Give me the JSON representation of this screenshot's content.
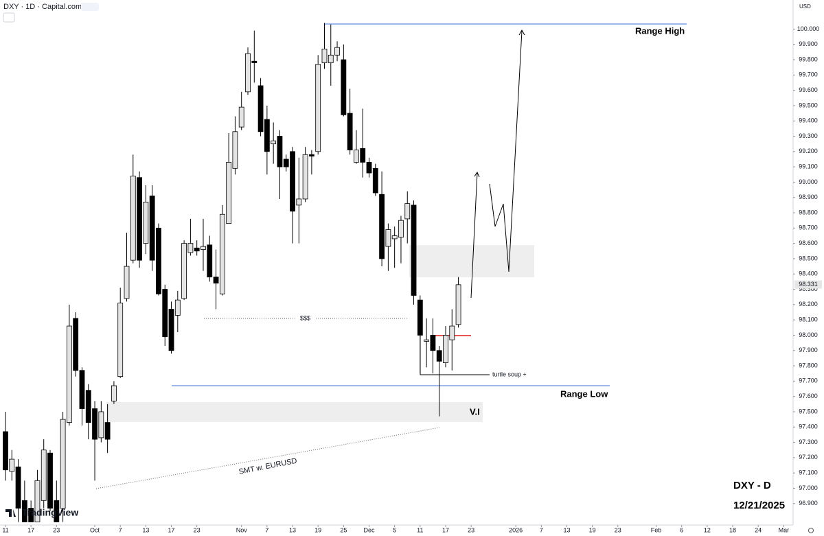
{
  "header": {
    "symbol": "DXY · 1D · Capital.com",
    "currency": "USD",
    "brand": "TradingView"
  },
  "chart_data": {
    "type": "candlestick",
    "open": [
      97.37,
      97.11,
      97.14,
      96.92,
      96.87,
      96.78,
      96.92,
      97.23,
      96.92,
      96.87,
      97.43,
      98.11,
      97.77,
      97.64,
      97.52,
      97.33,
      97.43,
      97.57,
      97.73,
      98.24,
      98.49,
      99.03,
      98.6,
      98.91,
      98.7,
      98.3,
      98.17,
      98.13,
      98.24,
      98.54,
      98.57,
      98.56,
      98.59,
      98.38,
      98.27,
      98.73,
      99.09,
      99.36,
      99.59,
      99.79,
      99.63,
      99.41,
      99.25,
      99.3,
      99.15,
      99.2,
      98.85,
      98.89,
      99.18,
      99.2,
      99.78,
      99.78,
      99.83,
      99.8,
      99.45,
      99.13,
      99.22,
      99.13,
      99.09,
      98.92,
      98.58,
      98.63,
      98.64,
      98.76,
      98.85,
      98.23,
      97.96,
      98.0,
      97.9,
      97.82,
      97.97,
      98.07
    ],
    "high": [
      97.5,
      97.25,
      97.19,
      97.05,
      96.92,
      97.12,
      97.32,
      97.25,
      97.05,
      97.5,
      98.2,
      98.15,
      97.79,
      97.68,
      97.57,
      97.57,
      97.55,
      97.7,
      98.31,
      98.67,
      99.18,
      99.07,
      98.98,
      98.98,
      98.73,
      98.33,
      98.22,
      98.29,
      98.62,
      98.76,
      98.62,
      98.76,
      98.65,
      98.56,
      98.85,
      99.32,
      99.43,
      99.59,
      99.88,
      99.99,
      99.68,
      99.5,
      99.39,
      99.34,
      99.18,
      99.23,
      99.16,
      99.23,
      99.21,
      99.83,
      100.04,
      100.03,
      99.92,
      99.9,
      99.61,
      99.34,
      99.48,
      99.16,
      99.12,
      99.07,
      98.73,
      98.71,
      98.78,
      98.94,
      98.88,
      98.26,
      98.11,
      98.11,
      97.93,
      98.06,
      98.17,
      98.38
    ],
    "low": [
      97.05,
      97.05,
      96.78,
      96.78,
      96.78,
      96.78,
      96.87,
      96.85,
      96.78,
      96.78,
      97.41,
      97.73,
      97.41,
      97.32,
      97.05,
      97.3,
      97.23,
      97.55,
      97.72,
      98.22,
      98.47,
      98.44,
      98.53,
      98.42,
      98.26,
      97.93,
      97.88,
      98.02,
      98.23,
      98.52,
      98.52,
      98.42,
      98.35,
      98.17,
      98.26,
      98.73,
      99.05,
      99.34,
      99.57,
      99.65,
      99.3,
      99.05,
      99.12,
      98.89,
      99.07,
      98.6,
      98.6,
      98.87,
      99.05,
      99.18,
      99.74,
      99.63,
      99.79,
      99.43,
      99.18,
      99.12,
      99.03,
      99.03,
      98.91,
      98.45,
      98.42,
      98.44,
      98.47,
      98.6,
      98.2,
      97.75,
      97.79,
      97.75,
      97.47,
      97.79,
      97.77,
      98.05
    ],
    "close": [
      97.12,
      97.19,
      96.87,
      96.78,
      96.78,
      97.05,
      97.25,
      96.87,
      96.78,
      97.45,
      98.06,
      97.77,
      97.52,
      97.43,
      97.32,
      97.5,
      97.32,
      97.67,
      98.21,
      98.45,
      99.04,
      98.49,
      98.87,
      98.49,
      98.27,
      97.99,
      97.9,
      98.23,
      98.6,
      98.6,
      98.55,
      98.58,
      98.38,
      98.34,
      98.79,
      99.13,
      99.33,
      99.49,
      99.84,
      99.78,
      99.33,
      99.2,
      99.27,
      99.1,
      99.1,
      98.81,
      98.89,
      99.18,
      99.17,
      99.77,
      99.87,
      99.83,
      99.88,
      99.44,
      99.21,
      99.21,
      99.13,
      99.06,
      98.93,
      98.5,
      98.69,
      98.65,
      98.75,
      98.86,
      98.26,
      98.0,
      97.97,
      97.9,
      97.83,
      98.0,
      98.06,
      98.33
    ],
    "up_color": "#e3e3e3",
    "down_color": "#000000",
    "last_price": 98.331,
    "ylim": [
      96.76,
      100.19
    ],
    "yticks": [
      {
        "value": 96.9,
        "label": "96.900"
      },
      {
        "value": 97.0,
        "label": "97.000"
      },
      {
        "value": 97.1,
        "label": "97.100"
      },
      {
        "value": 97.2,
        "label": "97.200"
      },
      {
        "value": 97.3,
        "label": "97.300"
      },
      {
        "value": 97.4,
        "label": "97.400"
      },
      {
        "value": 97.5,
        "label": "97.500"
      },
      {
        "value": 97.6,
        "label": "97.600"
      },
      {
        "value": 97.7,
        "label": "97.700"
      },
      {
        "value": 97.8,
        "label": "97.800"
      },
      {
        "value": 97.9,
        "label": "97.900"
      },
      {
        "value": 98.0,
        "label": "98.000"
      },
      {
        "value": 98.1,
        "label": "98.100"
      },
      {
        "value": 98.2,
        "label": "98.200"
      },
      {
        "value": 98.3,
        "label": "98.300"
      },
      {
        "value": 98.4,
        "label": "98.400"
      },
      {
        "value": 98.5,
        "label": "98.500"
      },
      {
        "value": 98.6,
        "label": "98.600"
      },
      {
        "value": 98.7,
        "label": "98.700"
      },
      {
        "value": 98.8,
        "label": "98.800"
      },
      {
        "value": 98.9,
        "label": "98.900"
      },
      {
        "value": 99.0,
        "label": "99.000"
      },
      {
        "value": 99.1,
        "label": "99.100"
      },
      {
        "value": 99.2,
        "label": "99.200"
      },
      {
        "value": 99.3,
        "label": "99.300"
      },
      {
        "value": 99.4,
        "label": "99.400"
      },
      {
        "value": 99.5,
        "label": "99.500"
      },
      {
        "value": 99.6,
        "label": "99.600"
      },
      {
        "value": 99.7,
        "label": "99.700"
      },
      {
        "value": 99.8,
        "label": "99.800"
      },
      {
        "value": 99.9,
        "label": "99.900"
      },
      {
        "value": 100.0,
        "label": "100.000"
      }
    ],
    "xlim": [
      -0.86,
      123.47
    ],
    "xticks": [
      {
        "value": 0,
        "label": "11"
      },
      {
        "value": 4,
        "label": "17"
      },
      {
        "value": 8,
        "label": "23"
      },
      {
        "value": 14,
        "label": "Oct"
      },
      {
        "value": 18,
        "label": "7"
      },
      {
        "value": 22,
        "label": "13"
      },
      {
        "value": 26,
        "label": "17"
      },
      {
        "value": 30,
        "label": "23"
      },
      {
        "value": 37,
        "label": "Nov"
      },
      {
        "value": 41,
        "label": "7"
      },
      {
        "value": 45,
        "label": "13"
      },
      {
        "value": 49,
        "label": "19"
      },
      {
        "value": 53,
        "label": "25"
      },
      {
        "value": 57,
        "label": "Dec"
      },
      {
        "value": 61,
        "label": "5"
      },
      {
        "value": 65,
        "label": "11"
      },
      {
        "value": 69,
        "label": "17"
      },
      {
        "value": 73,
        "label": "23"
      },
      {
        "value": 80,
        "label": "2026"
      },
      {
        "value": 84,
        "label": "7"
      },
      {
        "value": 88,
        "label": "13"
      },
      {
        "value": 92,
        "label": "19"
      },
      {
        "value": 96,
        "label": "23"
      },
      {
        "value": 102,
        "label": "Feb"
      },
      {
        "value": 106,
        "label": "6"
      },
      {
        "value": 110,
        "label": "12"
      },
      {
        "value": 114,
        "label": "18"
      },
      {
        "value": 118,
        "label": "24"
      },
      {
        "value": 122,
        "label": "Mar"
      }
    ],
    "annotations": [
      "Range High",
      "Range Low",
      "$$$",
      "turtle soup +",
      "V.I",
      "SMT w. EURUSD",
      "DXY - D",
      "12/21/2025"
    ]
  }
}
